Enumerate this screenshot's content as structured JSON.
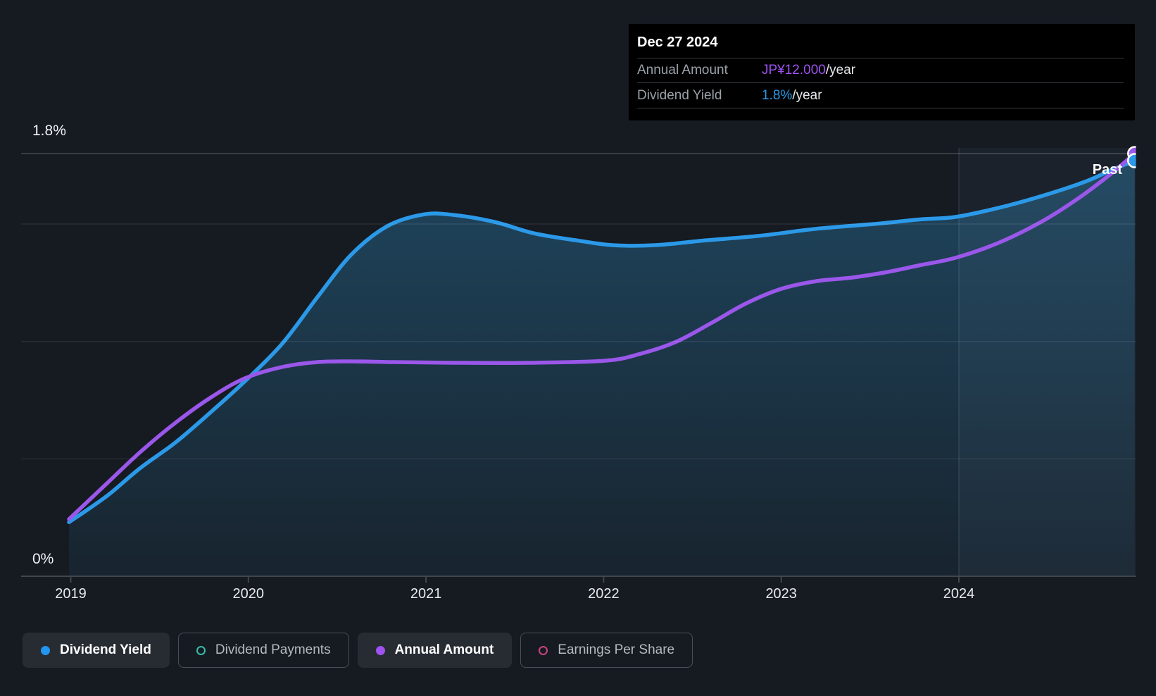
{
  "colors": {
    "background": "#161a21",
    "tooltip_background": "#000000",
    "dividend_yield_blue": "#2b99e8",
    "annual_amount_purple": "#9a57ea",
    "dividend_payments_teal": "#39bda8",
    "eps_pink": "#c9457e",
    "grid_line": "rgba(255,255,255,0.10)",
    "reference_line": "rgba(255,255,255,0.20)",
    "axis_line": "#41464d",
    "muted_text": "#9ba1a8",
    "tick_text": "#e8eaec"
  },
  "tooltip": {
    "title": "Dec 27 2024",
    "rows": [
      {
        "label": "Annual Amount",
        "value": "JP¥12.000",
        "suffix": "/year",
        "color": "#a052f0"
      },
      {
        "label": "Dividend Yield",
        "value": "1.8%",
        "suffix": "/year",
        "color": "#2b99e8"
      }
    ]
  },
  "past_label": "Past",
  "legend": {
    "items": [
      {
        "label": "Dividend Yield",
        "color": "#2196f3",
        "marker": "filled",
        "active": true
      },
      {
        "label": "Dividend Payments",
        "color": "#39bda8",
        "marker": "open",
        "active": false
      },
      {
        "label": "Annual Amount",
        "color": "#a052f0",
        "marker": "filled",
        "active": true
      },
      {
        "label": "Earnings Per Share",
        "color": "#c9457e",
        "marker": "open",
        "active": false
      }
    ]
  },
  "chart_data": {
    "type": "line",
    "title": "Dividend history - dividend yield and annual amount over time",
    "xlim": [
      2018.99,
      2024.99
    ],
    "x_tick_years": [
      2019,
      2020,
      2021,
      2022,
      2023,
      2024
    ],
    "x_tick_labels": [
      "2019",
      "2020",
      "2021",
      "2022",
      "2023",
      "2024"
    ],
    "grid": true,
    "legend_position": "bottom",
    "yaxis": {
      "top_label": "1.8%",
      "zero_label": "0%",
      "yield_max_pct": 1.8,
      "gridlines_pct": [
        0.5,
        1.0,
        1.5
      ],
      "reference_line_pct": 1.8
    },
    "highlight_band_start_year": 2024,
    "series": [
      {
        "name": "Dividend Yield",
        "unit": "%",
        "color": "#2b99e8",
        "ymax": 1.8,
        "area_fill": true,
        "end_marker": true,
        "points": [
          [
            2018.99,
            0.23
          ],
          [
            2019.2,
            0.34
          ],
          [
            2019.39,
            0.46
          ],
          [
            2019.59,
            0.57
          ],
          [
            2019.79,
            0.7
          ],
          [
            2019.98,
            0.83
          ],
          [
            2020.19,
            0.99
          ],
          [
            2020.39,
            1.19
          ],
          [
            2020.58,
            1.37
          ],
          [
            2020.78,
            1.49
          ],
          [
            2020.98,
            1.54
          ],
          [
            2021.14,
            1.54
          ],
          [
            2021.38,
            1.51
          ],
          [
            2021.61,
            1.46
          ],
          [
            2021.85,
            1.43
          ],
          [
            2022.05,
            1.41
          ],
          [
            2022.29,
            1.41
          ],
          [
            2022.57,
            1.43
          ],
          [
            2022.88,
            1.45
          ],
          [
            2023.2,
            1.48
          ],
          [
            2023.52,
            1.5
          ],
          [
            2023.79,
            1.52
          ],
          [
            2023.98,
            1.53
          ],
          [
            2024.23,
            1.57
          ],
          [
            2024.47,
            1.62
          ],
          [
            2024.71,
            1.68
          ],
          [
            2024.86,
            1.73
          ],
          [
            2024.99,
            1.77
          ]
        ]
      },
      {
        "name": "Annual Amount",
        "unit": "JP¥/year",
        "color": "#9a57ea",
        "ymax": 12,
        "area_fill": false,
        "end_marker": true,
        "points": [
          [
            2018.99,
            1.62
          ],
          [
            2019.2,
            2.62
          ],
          [
            2019.39,
            3.52
          ],
          [
            2019.59,
            4.36
          ],
          [
            2019.79,
            5.08
          ],
          [
            2019.98,
            5.62
          ],
          [
            2020.19,
            5.94
          ],
          [
            2020.39,
            6.08
          ],
          [
            2020.58,
            6.1
          ],
          [
            2020.82,
            6.08
          ],
          [
            2021.18,
            6.06
          ],
          [
            2021.58,
            6.06
          ],
          [
            2022.01,
            6.12
          ],
          [
            2022.21,
            6.32
          ],
          [
            2022.41,
            6.66
          ],
          [
            2022.61,
            7.2
          ],
          [
            2022.8,
            7.74
          ],
          [
            2023.0,
            8.16
          ],
          [
            2023.2,
            8.38
          ],
          [
            2023.4,
            8.48
          ],
          [
            2023.6,
            8.64
          ],
          [
            2023.79,
            8.84
          ],
          [
            2023.98,
            9.04
          ],
          [
            2024.23,
            9.48
          ],
          [
            2024.47,
            10.08
          ],
          [
            2024.67,
            10.72
          ],
          [
            2024.86,
            11.44
          ],
          [
            2024.99,
            12.0
          ]
        ]
      }
    ]
  }
}
